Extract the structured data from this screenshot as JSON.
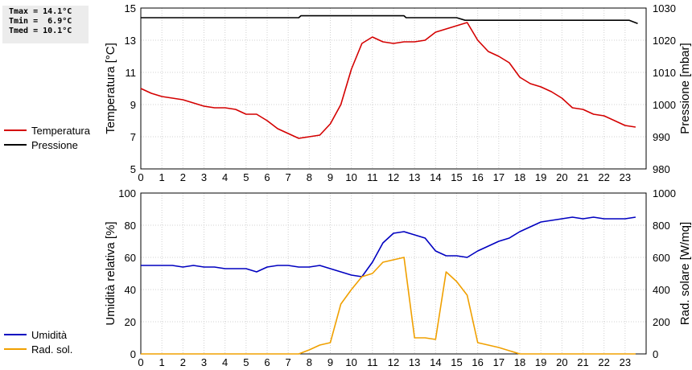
{
  "stats": {
    "tmax": "Tmax = 14.1°C",
    "tmin": "Tmin =  6.9°C",
    "tmed": "Tmed = 10.1°C"
  },
  "legend_top": [
    {
      "label": "Temperatura",
      "color": "#d40000"
    },
    {
      "label": "Pressione",
      "color": "#000000"
    }
  ],
  "legend_bottom": [
    {
      "label": "Umidità",
      "color": "#0000c0"
    },
    {
      "label": "Rad. sol.",
      "color": "#f0a000"
    }
  ],
  "chart_data": [
    {
      "type": "line",
      "xlabel": "",
      "xlim": [
        0,
        24
      ],
      "xticks": [
        "0",
        "1",
        "2",
        "3",
        "4",
        "5",
        "6",
        "7",
        "8",
        "9",
        "10",
        "11",
        "12",
        "13",
        "14",
        "15",
        "16",
        "17",
        "18",
        "19",
        "20",
        "21",
        "22",
        "23"
      ],
      "ylabel_left": "Temperatura [°C]",
      "ylim_left": [
        5,
        15
      ],
      "yticks_left": [
        "5",
        "7",
        "9",
        "11",
        "13",
        "15"
      ],
      "ylabel_right": "Pressione [mbar]",
      "ylim_right": [
        980,
        1030
      ],
      "yticks_right": [
        "980",
        "990",
        "1000",
        "1010",
        "1020",
        "1030"
      ],
      "grid": true,
      "series": [
        {
          "name": "Temperatura",
          "axis": "left",
          "color": "#d40000",
          "x": [
            0,
            0.5,
            1,
            1.5,
            2,
            2.5,
            3,
            3.5,
            4,
            4.5,
            5,
            5.5,
            6,
            6.5,
            7,
            7.5,
            8,
            8.5,
            9,
            9.5,
            10,
            10.5,
            11,
            11.5,
            12,
            12.5,
            13,
            13.5,
            14,
            14.5,
            15,
            15.5,
            16,
            16.5,
            17,
            17.5,
            18,
            18.5,
            19,
            19.5,
            20,
            20.5,
            21,
            21.5,
            22,
            22.5,
            23,
            23.5
          ],
          "y": [
            10.0,
            9.7,
            9.5,
            9.4,
            9.3,
            9.1,
            8.9,
            8.8,
            8.8,
            8.7,
            8.4,
            8.4,
            8.0,
            7.5,
            7.2,
            6.9,
            7.0,
            7.1,
            7.8,
            9.0,
            11.2,
            12.8,
            13.2,
            12.9,
            12.8,
            12.9,
            12.9,
            13.0,
            13.5,
            13.7,
            13.9,
            14.1,
            13.0,
            12.3,
            12.0,
            11.6,
            10.7,
            10.3,
            10.1,
            9.8,
            9.4,
            8.8,
            8.7,
            8.4,
            8.3,
            8.0,
            7.7,
            7.6
          ]
        },
        {
          "name": "Pressione",
          "axis": "right",
          "color": "#000000",
          "x": [
            0,
            7.5,
            7.6,
            12.5,
            12.6,
            15,
            15.4,
            23.2,
            23.6
          ],
          "y": [
            1027,
            1027,
            1027.6,
            1027.6,
            1027,
            1027,
            1026.2,
            1026.2,
            1025.2
          ]
        }
      ]
    },
    {
      "type": "line",
      "xlabel": "",
      "xlim": [
        0,
        24
      ],
      "xticks": [
        "0",
        "1",
        "2",
        "3",
        "4",
        "5",
        "6",
        "7",
        "8",
        "9",
        "10",
        "11",
        "12",
        "13",
        "14",
        "15",
        "16",
        "17",
        "18",
        "19",
        "20",
        "21",
        "22",
        "23"
      ],
      "ylabel_left": "Umidità relativa [%]",
      "ylim_left": [
        0,
        100
      ],
      "yticks_left": [
        "0",
        "20",
        "40",
        "60",
        "80",
        "100"
      ],
      "ylabel_right": "Rad. solare [W/mq]",
      "ylim_right": [
        0,
        1000
      ],
      "yticks_right": [
        "0",
        "200",
        "400",
        "600",
        "800",
        "1000"
      ],
      "grid": true,
      "series": [
        {
          "name": "Umidità",
          "axis": "left",
          "color": "#0000c0",
          "x": [
            0,
            0.5,
            1,
            1.5,
            2,
            2.5,
            3,
            3.5,
            4,
            4.5,
            5,
            5.5,
            6,
            6.5,
            7,
            7.5,
            8,
            8.5,
            9,
            9.5,
            10,
            10.5,
            11,
            11.5,
            12,
            12.5,
            13,
            13.5,
            14,
            14.5,
            15,
            15.5,
            16,
            16.5,
            17,
            17.5,
            18,
            18.5,
            19,
            19.5,
            20,
            20.5,
            21,
            21.5,
            22,
            22.5,
            23,
            23.5
          ],
          "y": [
            55,
            55,
            55,
            55,
            54,
            55,
            54,
            54,
            53,
            53,
            53,
            51,
            54,
            55,
            55,
            54,
            54,
            55,
            53,
            51,
            49,
            48,
            57,
            69,
            75,
            76,
            74,
            72,
            64,
            61,
            61,
            60,
            64,
            67,
            70,
            72,
            76,
            79,
            82,
            83,
            84,
            85,
            84,
            85,
            84,
            84,
            84,
            85
          ]
        },
        {
          "name": "Rad. sol.",
          "axis": "right",
          "color": "#f0a000",
          "x": [
            0,
            7.5,
            8,
            8.5,
            9,
            9.5,
            10,
            10.5,
            11,
            11.5,
            12,
            12.5,
            13,
            13.5,
            14,
            14.5,
            15,
            15.5,
            16,
            16.5,
            17,
            17.5,
            18,
            23.5
          ],
          "y": [
            0,
            0,
            25,
            55,
            70,
            310,
            400,
            480,
            500,
            570,
            585,
            600,
            100,
            100,
            90,
            510,
            450,
            365,
            70,
            55,
            40,
            20,
            0,
            0
          ]
        }
      ]
    }
  ]
}
